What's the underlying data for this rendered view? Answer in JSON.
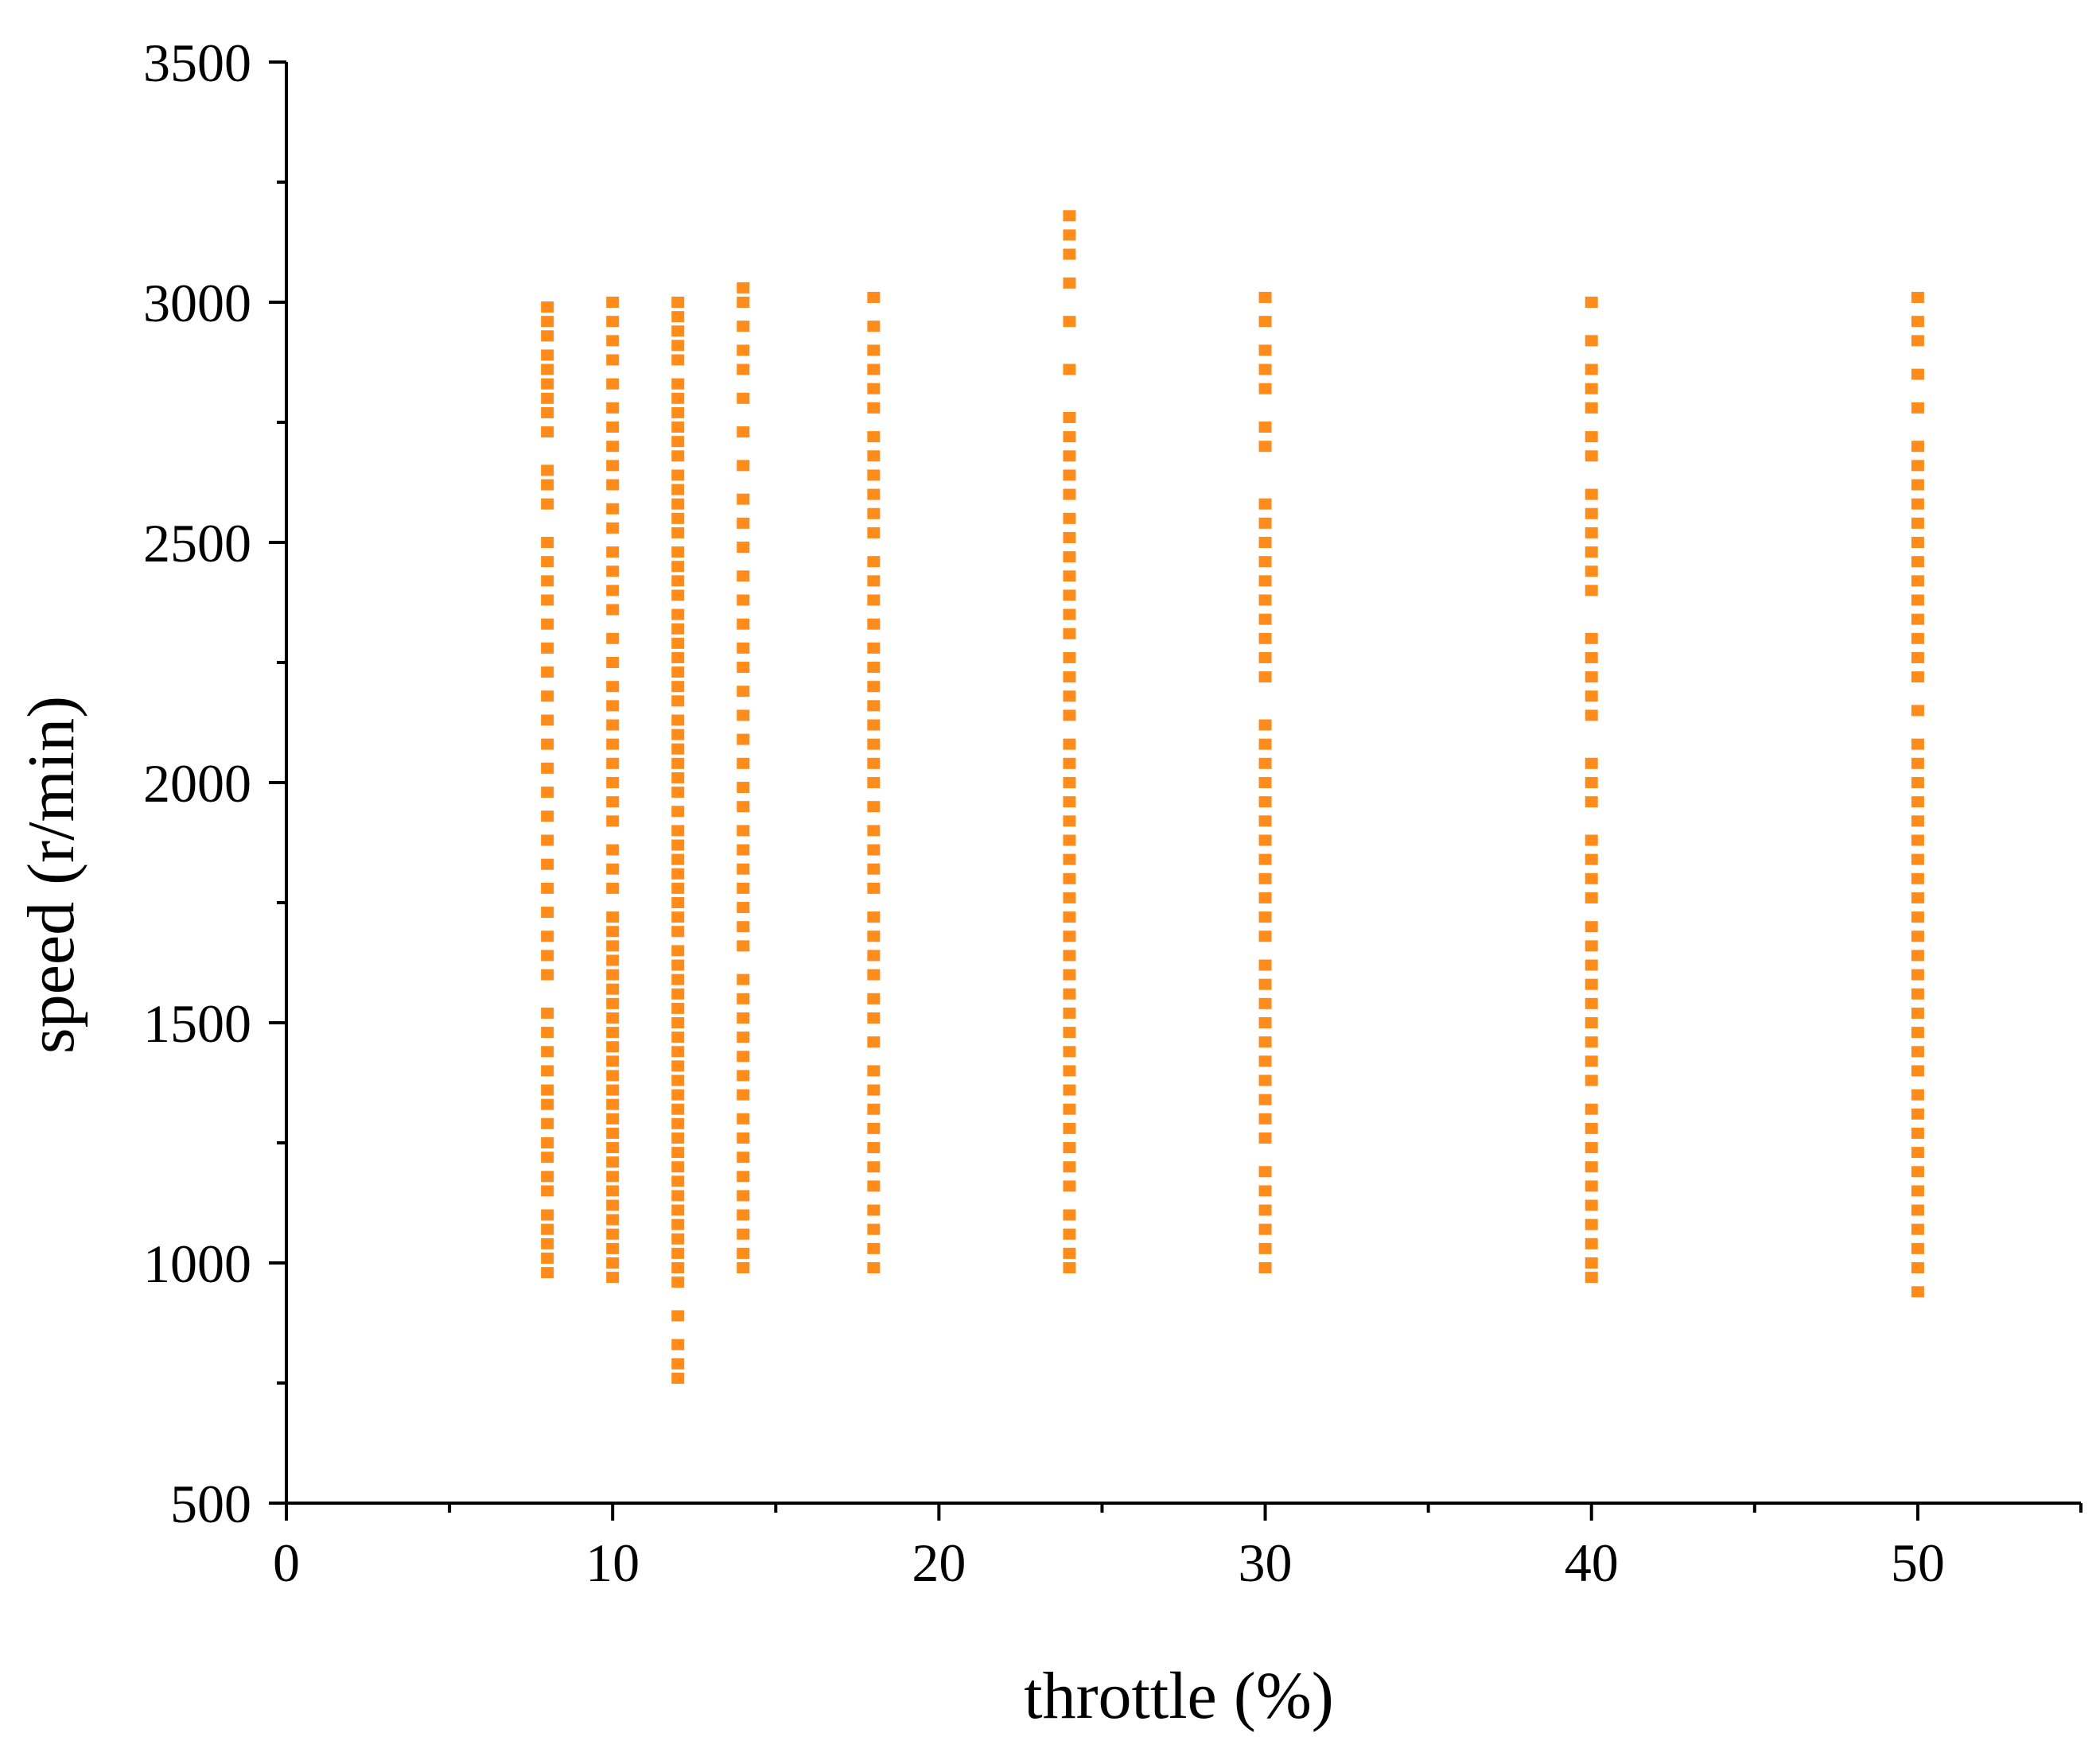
{
  "chart_data": {
    "type": "scatter",
    "title": "",
    "xlabel": "throttle (%)",
    "ylabel": "speed (r/min)",
    "xlim": [
      0,
      55
    ],
    "ylim": [
      500,
      3500
    ],
    "x_ticks": [
      0,
      10,
      20,
      30,
      40,
      50
    ],
    "x_minor_ticks": [
      5,
      15,
      25,
      35,
      45,
      55
    ],
    "y_ticks": [
      500,
      1000,
      1500,
      2000,
      2500,
      3000,
      3500
    ],
    "y_minor_ticks": [
      750,
      1250,
      1750,
      2250,
      2750,
      3250
    ],
    "x_tick_labels": [
      "0",
      "10",
      "20",
      "30",
      "40",
      "50"
    ],
    "y_tick_labels": [
      "500",
      "1000",
      "1500",
      "2000",
      "2500",
      "3000",
      "3500"
    ],
    "grid": false,
    "legend": "none",
    "marker": "square",
    "color": "#FF8C1A",
    "series": [
      {
        "x": 8,
        "y": [
          980,
          1010,
          1040,
          1070,
          1100,
          1150,
          1180,
          1220,
          1250,
          1290,
          1330,
          1360,
          1400,
          1440,
          1480,
          1520,
          1600,
          1640,
          1680,
          1730,
          1780,
          1830,
          1880,
          1930,
          1980,
          2030,
          2080,
          2130,
          2180,
          2230,
          2280,
          2330,
          2380,
          2420,
          2460,
          2500,
          2580,
          2620,
          2650,
          2730,
          2770,
          2800,
          2830,
          2860,
          2890,
          2930,
          2960,
          2990
        ]
      },
      {
        "x": 10,
        "y": [
          970,
          1000,
          1030,
          1060,
          1090,
          1120,
          1150,
          1180,
          1210,
          1240,
          1270,
          1300,
          1330,
          1360,
          1390,
          1420,
          1450,
          1480,
          1510,
          1540,
          1570,
          1600,
          1630,
          1660,
          1690,
          1720,
          1780,
          1820,
          1860,
          1920,
          1960,
          2000,
          2040,
          2080,
          2120,
          2160,
          2200,
          2250,
          2300,
          2360,
          2400,
          2440,
          2480,
          2530,
          2570,
          2620,
          2660,
          2700,
          2740,
          2780,
          2830,
          2880,
          2920,
          2960,
          3000
        ]
      },
      {
        "x": 12,
        "y": [
          760,
          790,
          830,
          890,
          960,
          990,
          1020,
          1050,
          1080,
          1110,
          1140,
          1170,
          1200,
          1230,
          1260,
          1290,
          1320,
          1350,
          1380,
          1410,
          1440,
          1470,
          1500,
          1530,
          1560,
          1590,
          1620,
          1650,
          1690,
          1720,
          1750,
          1780,
          1810,
          1840,
          1870,
          1900,
          1940,
          1980,
          2010,
          2040,
          2070,
          2100,
          2130,
          2170,
          2200,
          2230,
          2260,
          2290,
          2320,
          2350,
          2390,
          2420,
          2450,
          2480,
          2520,
          2550,
          2580,
          2610,
          2640,
          2680,
          2710,
          2740,
          2770,
          2800,
          2830,
          2880,
          2910,
          2940,
          2970,
          3000
        ]
      },
      {
        "x": 14,
        "y": [
          990,
          1020,
          1060,
          1100,
          1140,
          1180,
          1220,
          1260,
          1300,
          1350,
          1390,
          1430,
          1470,
          1510,
          1550,
          1590,
          1660,
          1700,
          1740,
          1780,
          1820,
          1860,
          1900,
          1950,
          1990,
          2040,
          2090,
          2140,
          2190,
          2240,
          2280,
          2330,
          2380,
          2430,
          2490,
          2540,
          2590,
          2660,
          2730,
          2800,
          2860,
          2900,
          2950,
          3000,
          3030
        ]
      },
      {
        "x": 18,
        "y": [
          990,
          1030,
          1070,
          1110,
          1160,
          1200,
          1240,
          1280,
          1320,
          1360,
          1400,
          1460,
          1510,
          1550,
          1600,
          1640,
          1680,
          1720,
          1780,
          1820,
          1860,
          1900,
          1950,
          2000,
          2040,
          2080,
          2120,
          2160,
          2200,
          2240,
          2280,
          2330,
          2380,
          2420,
          2460,
          2520,
          2560,
          2600,
          2640,
          2680,
          2720,
          2780,
          2820,
          2860,
          2900,
          2950,
          3010
        ]
      },
      {
        "x": 24,
        "y": [
          990,
          1020,
          1060,
          1100,
          1160,
          1200,
          1240,
          1280,
          1320,
          1360,
          1400,
          1440,
          1480,
          1520,
          1560,
          1600,
          1640,
          1680,
          1720,
          1760,
          1800,
          1840,
          1880,
          1920,
          1960,
          2000,
          2040,
          2080,
          2140,
          2180,
          2220,
          2260,
          2310,
          2350,
          2390,
          2430,
          2470,
          2510,
          2550,
          2600,
          2640,
          2680,
          2720,
          2760,
          2860,
          2960,
          3040,
          3100,
          3140,
          3180
        ]
      },
      {
        "x": 30,
        "y": [
          990,
          1030,
          1070,
          1110,
          1150,
          1190,
          1260,
          1300,
          1340,
          1380,
          1420,
          1460,
          1500,
          1540,
          1580,
          1620,
          1680,
          1720,
          1760,
          1800,
          1840,
          1880,
          1920,
          1960,
          2000,
          2040,
          2080,
          2120,
          2220,
          2260,
          2300,
          2340,
          2380,
          2420,
          2460,
          2500,
          2540,
          2580,
          2700,
          2740,
          2820,
          2860,
          2900,
          2960,
          3010
        ]
      },
      {
        "x": 40,
        "y": [
          970,
          1000,
          1040,
          1080,
          1120,
          1160,
          1200,
          1240,
          1280,
          1320,
          1380,
          1420,
          1460,
          1500,
          1540,
          1580,
          1620,
          1660,
          1700,
          1760,
          1800,
          1840,
          1880,
          1960,
          2000,
          2040,
          2140,
          2180,
          2220,
          2260,
          2300,
          2400,
          2440,
          2480,
          2520,
          2560,
          2600,
          2680,
          2720,
          2780,
          2820,
          2860,
          2920,
          3000
        ]
      },
      {
        "x": 50,
        "y": [
          940,
          990,
          1030,
          1070,
          1110,
          1150,
          1190,
          1230,
          1270,
          1310,
          1350,
          1400,
          1440,
          1480,
          1520,
          1560,
          1600,
          1640,
          1680,
          1720,
          1760,
          1800,
          1840,
          1880,
          1920,
          1960,
          2000,
          2040,
          2080,
          2150,
          2220,
          2260,
          2300,
          2340,
          2380,
          2420,
          2460,
          2500,
          2540,
          2580,
          2620,
          2660,
          2700,
          2780,
          2850,
          2920,
          2960,
          3010
        ]
      }
    ]
  }
}
